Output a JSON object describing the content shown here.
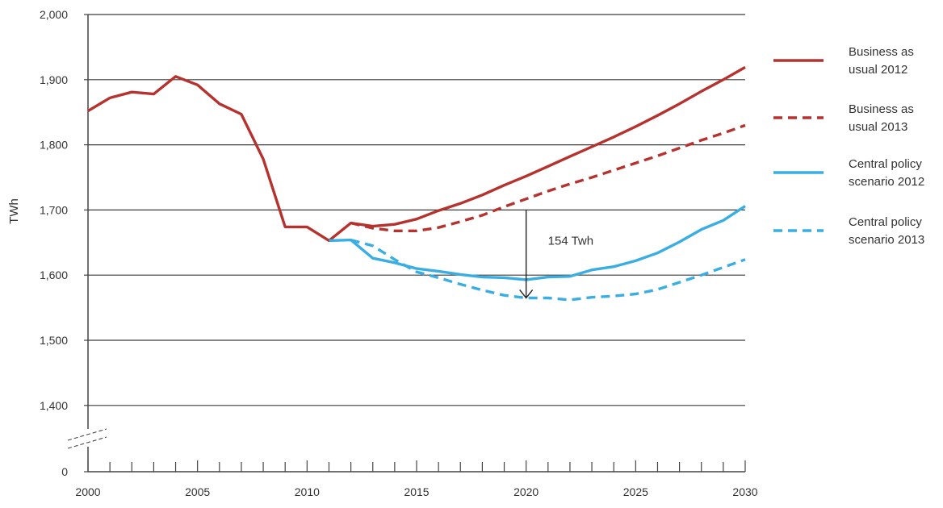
{
  "chart_data": {
    "type": "line",
    "ylabel": "TWh",
    "xlabel": "",
    "xlim": [
      2000,
      2030
    ],
    "ylim": [
      1400,
      2000
    ],
    "axis_break": true,
    "grid": "horizontal",
    "legend_position": "right",
    "x_tick_labels": [
      "2000",
      "2005",
      "2010",
      "2015",
      "2020",
      "2025",
      "2030"
    ],
    "y_tick_labels": [
      "0",
      "1,400",
      "1,500",
      "1,600",
      "1,700",
      "1,800",
      "1,900",
      "2,000"
    ],
    "series": [
      {
        "name": "Business as usual 2012",
        "legend_lines": [
          "Business as",
          "usual 2012"
        ],
        "color": "#b5322e",
        "style": "solid",
        "points": [
          [
            2000,
            1852
          ],
          [
            2001,
            1872
          ],
          [
            2002,
            1881
          ],
          [
            2003,
            1878
          ],
          [
            2004,
            1905
          ],
          [
            2005,
            1892
          ],
          [
            2006,
            1863
          ],
          [
            2007,
            1847
          ],
          [
            2008,
            1778
          ],
          [
            2009,
            1674
          ],
          [
            2010,
            1674
          ],
          [
            2011,
            1653
          ],
          [
            2012,
            1680
          ],
          [
            2013,
            1675
          ],
          [
            2014,
            1678
          ],
          [
            2015,
            1686
          ],
          [
            2016,
            1699
          ],
          [
            2017,
            1710
          ],
          [
            2018,
            1723
          ],
          [
            2019,
            1738
          ],
          [
            2020,
            1752
          ],
          [
            2021,
            1767
          ],
          [
            2022,
            1782
          ],
          [
            2023,
            1797
          ],
          [
            2024,
            1812
          ],
          [
            2025,
            1828
          ],
          [
            2026,
            1845
          ],
          [
            2027,
            1863
          ],
          [
            2028,
            1882
          ],
          [
            2029,
            1900
          ],
          [
            2030,
            1919
          ]
        ]
      },
      {
        "name": "Business as usual 2013",
        "legend_lines": [
          "Business as",
          "usual 2013"
        ],
        "color": "#b5322e",
        "style": "dashed",
        "points": [
          [
            2012,
            1680
          ],
          [
            2013,
            1672
          ],
          [
            2014,
            1668
          ],
          [
            2015,
            1668
          ],
          [
            2016,
            1673
          ],
          [
            2017,
            1682
          ],
          [
            2018,
            1692
          ],
          [
            2019,
            1705
          ],
          [
            2020,
            1717
          ],
          [
            2021,
            1729
          ],
          [
            2022,
            1740
          ],
          [
            2023,
            1750
          ],
          [
            2024,
            1761
          ],
          [
            2025,
            1772
          ],
          [
            2026,
            1783
          ],
          [
            2027,
            1795
          ],
          [
            2028,
            1807
          ],
          [
            2029,
            1818
          ],
          [
            2030,
            1830
          ]
        ]
      },
      {
        "name": "Central policy scenario 2012",
        "legend_lines": [
          "Central policy",
          "scenario 2012"
        ],
        "color": "#3aaee2",
        "style": "solid",
        "points": [
          [
            2011,
            1653
          ],
          [
            2012,
            1654
          ],
          [
            2013,
            1626
          ],
          [
            2014,
            1619
          ],
          [
            2015,
            1610
          ],
          [
            2016,
            1606
          ],
          [
            2017,
            1601
          ],
          [
            2018,
            1597
          ],
          [
            2019,
            1596
          ],
          [
            2020,
            1593
          ],
          [
            2021,
            1597
          ],
          [
            2022,
            1598
          ],
          [
            2023,
            1608
          ],
          [
            2024,
            1613
          ],
          [
            2025,
            1622
          ],
          [
            2026,
            1634
          ],
          [
            2027,
            1651
          ],
          [
            2028,
            1670
          ],
          [
            2029,
            1684
          ],
          [
            2030,
            1706
          ]
        ]
      },
      {
        "name": "Central policy scenario 2013",
        "legend_lines": [
          "Central policy",
          "scenario 2013"
        ],
        "color": "#3aaee2",
        "style": "dashed",
        "points": [
          [
            2012,
            1654
          ],
          [
            2013,
            1645
          ],
          [
            2014,
            1624
          ],
          [
            2015,
            1605
          ],
          [
            2016,
            1596
          ],
          [
            2017,
            1586
          ],
          [
            2018,
            1577
          ],
          [
            2019,
            1569
          ],
          [
            2020,
            1565
          ],
          [
            2021,
            1565
          ],
          [
            2022,
            1562
          ],
          [
            2023,
            1566
          ],
          [
            2024,
            1568
          ],
          [
            2025,
            1571
          ],
          [
            2026,
            1578
          ],
          [
            2027,
            1589
          ],
          [
            2028,
            1600
          ],
          [
            2029,
            1612
          ],
          [
            2030,
            1624
          ]
        ]
      }
    ],
    "annotation": {
      "text": "154 Twh",
      "x": 2020,
      "from": 1700,
      "to": 1565
    }
  }
}
